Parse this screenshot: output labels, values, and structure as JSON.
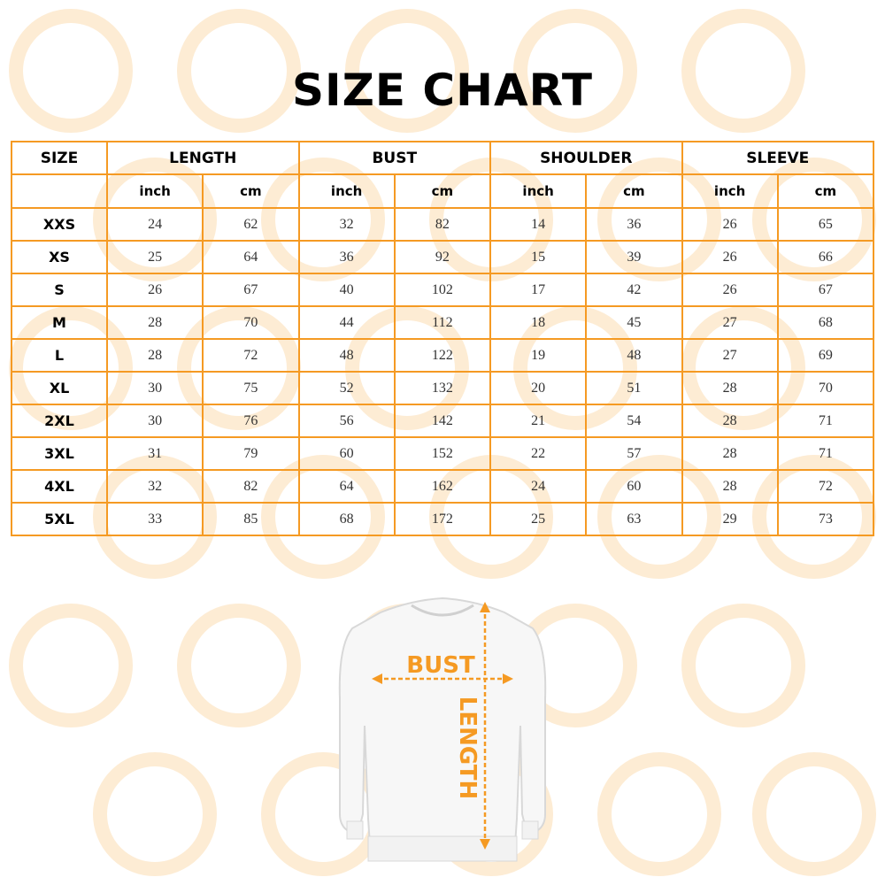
{
  "title": "SIZE CHART",
  "colors": {
    "accent": "#f59a23",
    "watermark": "#fdecd4"
  },
  "table": {
    "size_header": "SIZE",
    "groups": [
      "LENGTH",
      "BUST",
      "SHOULDER",
      "SLEEVE"
    ],
    "units": [
      "inch",
      "cm"
    ],
    "rows": [
      {
        "size": "XXS",
        "values": [
          "24",
          "62",
          "32",
          "82",
          "14",
          "36",
          "26",
          "65"
        ]
      },
      {
        "size": "XS",
        "values": [
          "25",
          "64",
          "36",
          "92",
          "15",
          "39",
          "26",
          "66"
        ]
      },
      {
        "size": "S",
        "values": [
          "26",
          "67",
          "40",
          "102",
          "17",
          "42",
          "26",
          "67"
        ]
      },
      {
        "size": "M",
        "values": [
          "28",
          "70",
          "44",
          "112",
          "18",
          "45",
          "27",
          "68"
        ]
      },
      {
        "size": "L",
        "values": [
          "28",
          "72",
          "48",
          "122",
          "19",
          "48",
          "27",
          "69"
        ]
      },
      {
        "size": "XL",
        "values": [
          "30",
          "75",
          "52",
          "132",
          "20",
          "51",
          "28",
          "70"
        ]
      },
      {
        "size": "2XL",
        "values": [
          "30",
          "76",
          "56",
          "142",
          "21",
          "54",
          "28",
          "71"
        ]
      },
      {
        "size": "3XL",
        "values": [
          "31",
          "79",
          "60",
          "152",
          "22",
          "57",
          "28",
          "71"
        ]
      },
      {
        "size": "4XL",
        "values": [
          "32",
          "82",
          "64",
          "162",
          "24",
          "60",
          "28",
          "72"
        ]
      },
      {
        "size": "5XL",
        "values": [
          "33",
          "85",
          "68",
          "172",
          "25",
          "63",
          "29",
          "73"
        ]
      }
    ]
  },
  "illustration": {
    "bust_label": "BUST",
    "length_label": "LENGTH",
    "icon": "sweater-icon"
  }
}
